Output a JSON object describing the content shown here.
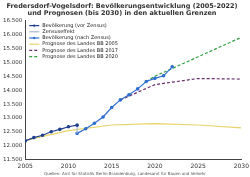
{
  "chart_data": {
    "type": "line",
    "title": "Fredersdorf-Vogelsdorf: Bevölkerungsentwicklung (2005-2022)",
    "subtitle": "und Prognosen (bis 2030) in den aktuellen Grenzen",
    "source": "Quellen: Amt für Statistik Berlin-Brandenburg, Landesamt für Bauen und Verkehr",
    "xlim": [
      2005,
      2030
    ],
    "xticks": [
      2005,
      2010,
      2015,
      2020,
      2025,
      2030
    ],
    "ylim": [
      11500,
      16500
    ],
    "yticks": [
      {
        "value": 11500,
        "label": "11.500"
      },
      {
        "value": 12000,
        "label": "12.000"
      },
      {
        "value": 12500,
        "label": "12.500"
      },
      {
        "value": 13000,
        "label": "13.000"
      },
      {
        "value": 13500,
        "label": "13.500"
      },
      {
        "value": 14000,
        "label": "14.000"
      },
      {
        "value": 14500,
        "label": "14.500"
      },
      {
        "value": 15000,
        "label": "15.000"
      },
      {
        "value": 15500,
        "label": "15.500"
      },
      {
        "value": 16000,
        "label": "16.000"
      },
      {
        "value": 16500,
        "label": "16.500"
      }
    ],
    "grid": false,
    "legend": "upper left",
    "series": [
      {
        "name": "Bevölkerung (vor Zensus)",
        "color": "#1f3f8f",
        "line_style": "solid",
        "marker": "circle",
        "x": [
          2005,
          2006,
          2007,
          2008,
          2009,
          2010,
          2011
        ],
        "values": [
          12178,
          12297,
          12382,
          12508,
          12593,
          12688,
          12745
        ]
      },
      {
        "name": "Zensuseffekt",
        "color": "#a9b8d6",
        "line_style": "solid",
        "marker": "none",
        "x": [
          2011,
          2011
        ],
        "values": [
          12745,
          12449
        ]
      },
      {
        "name": "Bevölkerung (nach Zensus)",
        "color": "#2f6fd0",
        "line_style": "solid",
        "marker": "circle",
        "x": [
          2011,
          2012,
          2013,
          2014,
          2015,
          2016,
          2017,
          2018,
          2019,
          2020,
          2021,
          2022
        ],
        "values": [
          12449,
          12614,
          12813,
          13039,
          13377,
          13652,
          13833,
          14047,
          14312,
          14426,
          14517,
          14840
        ]
      },
      {
        "name": "Prognose des Landes BB 2005",
        "color": "#e8d36a",
        "line_style": "solid",
        "marker": "none",
        "x": [
          2005,
          2010,
          2015,
          2020,
          2025,
          2030
        ],
        "values": [
          12200,
          12550,
          12750,
          12800,
          12750,
          12650
        ]
      },
      {
        "name": "Prognose des Landes BB 2017",
        "color": "#6a2f6f",
        "line_style": "dashed",
        "marker": "none",
        "x": [
          2016,
          2020,
          2025,
          2030
        ],
        "values": [
          13652,
          14200,
          14420,
          14400
        ]
      },
      {
        "name": "Prognose des Landes BB 2020",
        "color": "#2e9e3e",
        "line_style": "dashed",
        "marker": "none",
        "x": [
          2019,
          2020,
          2025,
          2030
        ],
        "values": [
          14312,
          14500,
          15200,
          15900
        ]
      }
    ]
  }
}
